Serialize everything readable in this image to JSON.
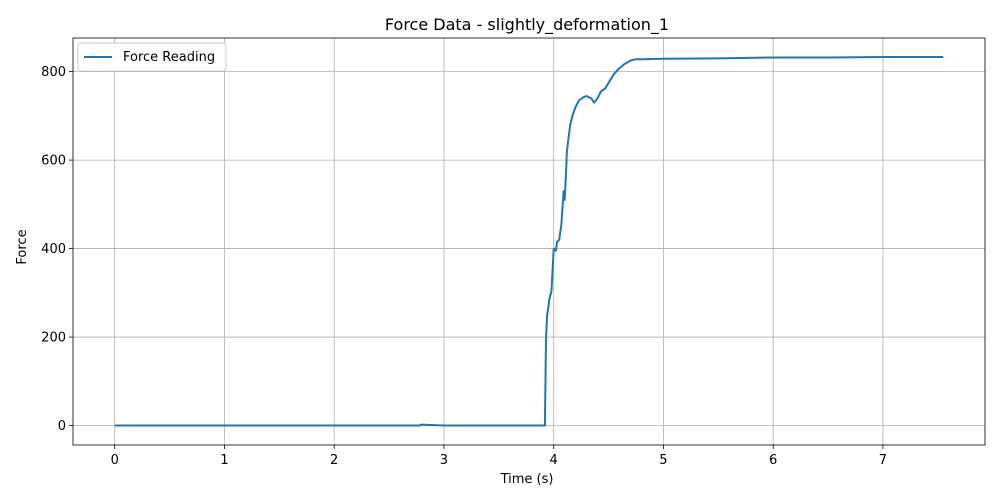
{
  "chart_data": {
    "type": "line",
    "title": "Force Data - slightly_deformation_1",
    "xlabel": "Time (s)",
    "ylabel": "Force",
    "xlim": [
      -0.38,
      7.93
    ],
    "ylim": [
      -44,
      876
    ],
    "xticks": [
      0,
      1,
      2,
      3,
      4,
      5,
      6,
      7
    ],
    "yticks": [
      0,
      200,
      400,
      600,
      800
    ],
    "grid": true,
    "legend_position": "top-left",
    "series": [
      {
        "name": "Force Reading",
        "color": "#1f77b4",
        "x": [
          0,
          1,
          2,
          2.78,
          2.79,
          3,
          3.92,
          3.93,
          3.94,
          3.95,
          3.96,
          3.98,
          4.0,
          4.02,
          4.03,
          4.05,
          4.07,
          4.09,
          4.1,
          4.11,
          4.12,
          4.13,
          4.15,
          4.17,
          4.2,
          4.23,
          4.27,
          4.3,
          4.34,
          4.37,
          4.4,
          4.43,
          4.47,
          4.5,
          4.55,
          4.6,
          4.65,
          4.7,
          4.75,
          4.8,
          5.0,
          5.5,
          6.0,
          6.5,
          7.0,
          7.55
        ],
        "y": [
          0,
          0,
          0,
          0,
          2,
          0,
          0,
          195,
          250,
          265,
          285,
          305,
          400,
          395,
          415,
          420,
          455,
          530,
          510,
          560,
          620,
          640,
          680,
          700,
          720,
          735,
          742,
          745,
          740,
          730,
          740,
          755,
          762,
          775,
          795,
          808,
          818,
          825,
          828,
          828,
          829,
          830,
          832,
          832,
          833,
          833
        ]
      }
    ]
  }
}
